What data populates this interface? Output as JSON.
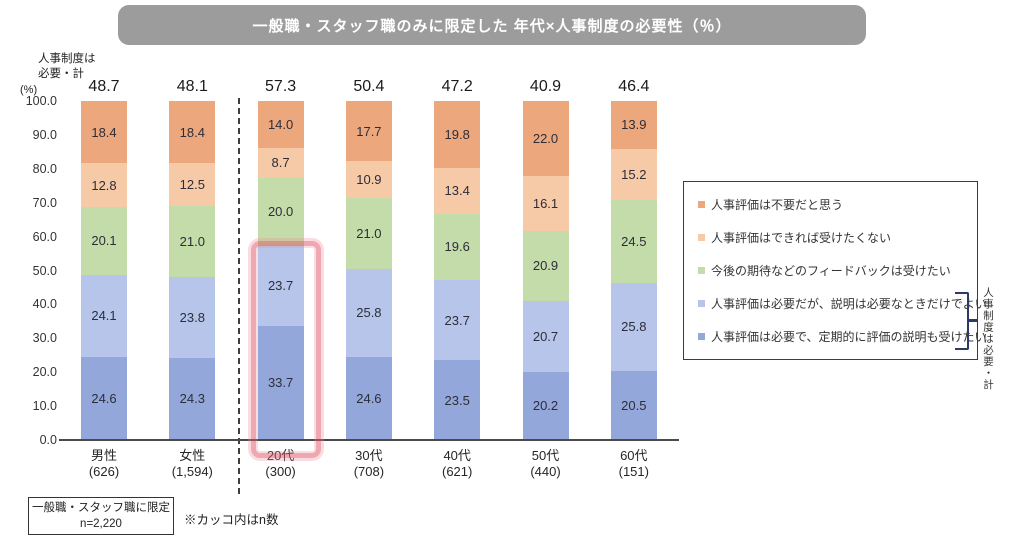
{
  "title": "一般職・スタッフ職のみに限定した 年代×人事制度の必要性（％）",
  "axis_header": {
    "line1": "人事制度は",
    "line2": "必要・計"
  },
  "unit_label": "(%)",
  "chart_data": {
    "type": "bar",
    "stacked": true,
    "title": "一般職・スタッフ職のみに限定した 年代×人事制度の必要性（％）",
    "categories": [
      "男性",
      "女性",
      "20代",
      "30代",
      "40代",
      "50代",
      "60代"
    ],
    "category_counts": [
      "(626)",
      "(1,594)",
      "(300)",
      "(708)",
      "(621)",
      "(440)",
      "(151)"
    ],
    "totals_label": "人事制度は必要・計",
    "totals": [
      48.7,
      48.1,
      57.3,
      50.4,
      47.2,
      40.9,
      46.4
    ],
    "ylabel": "(%)",
    "ylim": [
      0,
      100
    ],
    "grid": false,
    "legend_position": "right",
    "y_ticks": [
      "100.0",
      "90.0",
      "80.0",
      "70.0",
      "60.0",
      "50.0",
      "40.0",
      "30.0",
      "20.0",
      "10.0",
      "0.0"
    ],
    "series_bottom_to_top": [
      {
        "name": "人事評価は必要で、定期的に評価の説明も受けたい",
        "color": "#93A7DA",
        "values": [
          24.6,
          24.3,
          33.7,
          24.6,
          23.5,
          20.2,
          20.5
        ]
      },
      {
        "name": "人事評価は必要だが、説明は必要なときだけでよい",
        "color": "#B6C5E9",
        "values": [
          24.1,
          23.8,
          23.7,
          25.8,
          23.7,
          20.7,
          25.8
        ]
      },
      {
        "name": "今後の期待などのフィードバックは受けたい",
        "color": "#C4DBAA",
        "values": [
          20.1,
          21.0,
          20.0,
          21.0,
          19.6,
          20.9,
          24.5
        ]
      },
      {
        "name": "人事評価はできれば受けたくない",
        "color": "#F6C9A7",
        "values": [
          12.8,
          12.5,
          8.7,
          10.9,
          13.4,
          16.1,
          15.2
        ]
      },
      {
        "name": "人事評価は不要だと思う",
        "color": "#ECA87C",
        "values": [
          18.4,
          18.4,
          14.0,
          17.7,
          19.8,
          22.0,
          13.9
        ]
      }
    ],
    "highlight": {
      "category": "20代",
      "segments": "bottom two (必要・計 57.3)",
      "color": "#DF5263"
    }
  },
  "legend": {
    "items": [
      {
        "label": "人事評価は不要だと思う",
        "color": "#ECA87C"
      },
      {
        "label": "人事評価はできれば受けたくない",
        "color": "#F6C9A7"
      },
      {
        "label": "今後の期待などのフィードバックは受けたい",
        "color": "#C4DBAA"
      },
      {
        "label": "人事評価は必要だが、説明は必要なときだけでよい",
        "color": "#B6C5E9"
      },
      {
        "label": "人事評価は必要で、定期的に評価の説明も受けたい",
        "color": "#93A7DA"
      }
    ],
    "bracket_label": "人事制度は必要・計"
  },
  "footnote_box": {
    "line1": "一般職・スタッフ職に限定",
    "line2": "n=2,220"
  },
  "note": "※カッコ内はn数"
}
